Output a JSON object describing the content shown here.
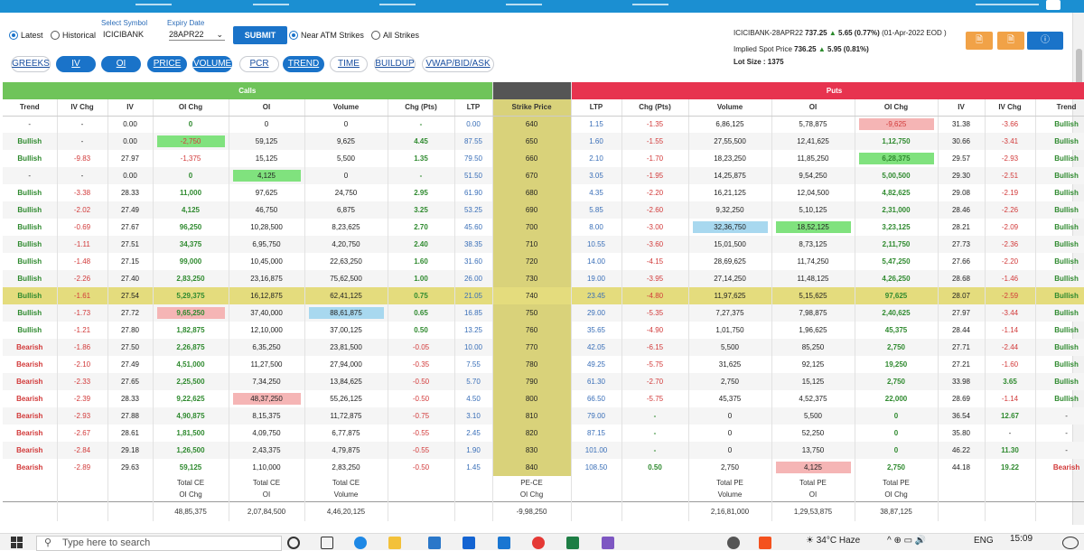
{
  "form": {
    "latest_label": "Latest",
    "historical_label": "Historical",
    "symbol_label": "Select Symbol",
    "symbol_value": "ICICIBANK",
    "expiry_label": "Expiry Date",
    "expiry_value": "28APR22",
    "submit_label": "SUBMIT",
    "near_atm_label": "Near ATM Strikes",
    "all_strikes_label": "All Strikes"
  },
  "tabs": [
    "GREEKS",
    "IV",
    "OI",
    "PRICE",
    "VOLUME",
    "PCR",
    "TREND",
    "TIME",
    "BUILDUP",
    "VWAP/BID/ASK"
  ],
  "info": {
    "contract": "ICICIBANK-28APR22",
    "price": "737.25",
    "change": "5.65 (0.77%)",
    "date": "(01-Apr-2022 EOD )",
    "spot_label": "Implied Spot Price",
    "spot": "736.25",
    "spot_change": "5.95 (0.81%)",
    "lot_label": "Lot Size :",
    "lot": "1375"
  },
  "sections": {
    "calls": "Calls",
    "puts": "Puts"
  },
  "headers": [
    "Trend",
    "IV Chg",
    "IV",
    "OI Chg",
    "OI",
    "Volume",
    "Chg (Pts)",
    "LTP",
    "Strike Price",
    "LTP",
    "Chg (Pts)",
    "Volume",
    "OI",
    "OI Chg",
    "IV",
    "IV Chg",
    "Trend"
  ],
  "rows": [
    [
      "-",
      "-",
      "0.00",
      "0",
      "0",
      "0",
      "-",
      "0.00",
      "640",
      "1.15",
      "-1.35",
      "6,86,125",
      "5,78,875",
      "-9,625",
      "31.38",
      "-3.66",
      "Bullish"
    ],
    [
      "Bullish",
      "-",
      "0.00",
      "-2,750",
      "59,125",
      "9,625",
      "4.45",
      "87.55",
      "650",
      "1.60",
      "-1.55",
      "27,55,500",
      "12,41,625",
      "1,12,750",
      "30.66",
      "-3.41",
      "Bullish"
    ],
    [
      "Bullish",
      "-9.83",
      "27.97",
      "-1,375",
      "15,125",
      "5,500",
      "1.35",
      "79.50",
      "660",
      "2.10",
      "-1.70",
      "18,23,250",
      "11,85,250",
      "6,28,375",
      "29.57",
      "-2.93",
      "Bullish"
    ],
    [
      "-",
      "-",
      "0.00",
      "0",
      "4,125",
      "0",
      "-",
      "51.50",
      "670",
      "3.05",
      "-1.95",
      "14,25,875",
      "9,54,250",
      "5,00,500",
      "29.30",
      "-2.51",
      "Bullish"
    ],
    [
      "Bullish",
      "-3.38",
      "28.33",
      "11,000",
      "97,625",
      "24,750",
      "2.95",
      "61.90",
      "680",
      "4.35",
      "-2.20",
      "16,21,125",
      "12,04,500",
      "4,82,625",
      "29.08",
      "-2.19",
      "Bullish"
    ],
    [
      "Bullish",
      "-2.02",
      "27.49",
      "4,125",
      "46,750",
      "6,875",
      "3.25",
      "53.25",
      "690",
      "5.85",
      "-2.60",
      "9,32,250",
      "5,10,125",
      "2,31,000",
      "28.46",
      "-2.26",
      "Bullish"
    ],
    [
      "Bullish",
      "-0.69",
      "27.67",
      "96,250",
      "10,28,500",
      "8,23,625",
      "2.70",
      "45.60",
      "700",
      "8.00",
      "-3.00",
      "32,36,750",
      "18,52,125",
      "3,23,125",
      "28.21",
      "-2.09",
      "Bullish"
    ],
    [
      "Bullish",
      "-1.11",
      "27.51",
      "34,375",
      "6,95,750",
      "4,20,750",
      "2.40",
      "38.35",
      "710",
      "10.55",
      "-3.60",
      "15,01,500",
      "8,73,125",
      "2,11,750",
      "27.73",
      "-2.36",
      "Bullish"
    ],
    [
      "Bullish",
      "-1.48",
      "27.15",
      "99,000",
      "10,45,000",
      "22,63,250",
      "1.60",
      "31.60",
      "720",
      "14.00",
      "-4.15",
      "28,69,625",
      "11,74,250",
      "5,47,250",
      "27.66",
      "-2.20",
      "Bullish"
    ],
    [
      "Bullish",
      "-2.26",
      "27.40",
      "2,83,250",
      "23,16,875",
      "75,62,500",
      "1.00",
      "26.00",
      "730",
      "19.00",
      "-3.95",
      "27,14,250",
      "11,48,125",
      "4,26,250",
      "28.68",
      "-1.46",
      "Bullish"
    ],
    [
      "Bullish",
      "-1.61",
      "27.54",
      "5,29,375",
      "16,12,875",
      "62,41,125",
      "0.75",
      "21.05",
      "740",
      "23.45",
      "-4.80",
      "11,97,625",
      "5,15,625",
      "97,625",
      "28.07",
      "-2.59",
      "Bullish"
    ],
    [
      "Bullish",
      "-1.73",
      "27.72",
      "9,65,250",
      "37,40,000",
      "88,61,875",
      "0.65",
      "16.85",
      "750",
      "29.00",
      "-5.35",
      "7,27,375",
      "7,98,875",
      "2,40,625",
      "27.97",
      "-3.44",
      "Bullish"
    ],
    [
      "Bullish",
      "-1.21",
      "27.80",
      "1,82,875",
      "12,10,000",
      "37,00,125",
      "0.50",
      "13.25",
      "760",
      "35.65",
      "-4.90",
      "1,01,750",
      "1,96,625",
      "45,375",
      "28.44",
      "-1.14",
      "Bullish"
    ],
    [
      "Bearish",
      "-1.86",
      "27.50",
      "2,26,875",
      "6,35,250",
      "23,81,500",
      "-0.05",
      "10.00",
      "770",
      "42.05",
      "-6.15",
      "5,500",
      "85,250",
      "2,750",
      "27.71",
      "-2.44",
      "Bullish"
    ],
    [
      "Bearish",
      "-2.10",
      "27.49",
      "4,51,000",
      "11,27,500",
      "27,94,000",
      "-0.35",
      "7.55",
      "780",
      "49.25",
      "-5.75",
      "31,625",
      "92,125",
      "19,250",
      "27.21",
      "-1.60",
      "Bullish"
    ],
    [
      "Bearish",
      "-2.33",
      "27.65",
      "2,25,500",
      "7,34,250",
      "13,84,625",
      "-0.50",
      "5.70",
      "790",
      "61.30",
      "-2.70",
      "2,750",
      "15,125",
      "2,750",
      "33.98",
      "3.65",
      "Bullish"
    ],
    [
      "Bearish",
      "-2.39",
      "28.33",
      "9,22,625",
      "48,37,250",
      "55,26,125",
      "-0.50",
      "4.50",
      "800",
      "66.50",
      "-5.75",
      "45,375",
      "4,52,375",
      "22,000",
      "28.69",
      "-1.14",
      "Bullish"
    ],
    [
      "Bearish",
      "-2.93",
      "27.88",
      "4,90,875",
      "8,15,375",
      "11,72,875",
      "-0.75",
      "3.10",
      "810",
      "79.00",
      "-",
      "0",
      "5,500",
      "0",
      "36.54",
      "12.67",
      "-"
    ],
    [
      "Bearish",
      "-2.67",
      "28.61",
      "1,81,500",
      "4,09,750",
      "6,77,875",
      "-0.55",
      "2.45",
      "820",
      "87.15",
      "-",
      "0",
      "52,250",
      "0",
      "35.80",
      "-",
      "-"
    ],
    [
      "Bearish",
      "-2.84",
      "29.18",
      "1,26,500",
      "2,43,375",
      "4,79,875",
      "-0.55",
      "1.90",
      "830",
      "101.00",
      "-",
      "0",
      "13,750",
      "0",
      "46.22",
      "11.30",
      "-"
    ],
    [
      "Bearish",
      "-2.89",
      "29.63",
      "59,125",
      "1,10,000",
      "2,83,250",
      "-0.50",
      "1.45",
      "840",
      "108.50",
      "0.50",
      "2,750",
      "4,125",
      "2,750",
      "44.18",
      "19.22",
      "Bearish"
    ]
  ],
  "totals": {
    "l1": [
      "",
      "",
      "",
      "Total CE",
      "Total CE",
      "Total CE",
      "",
      "",
      "PE-CE",
      "",
      "",
      "Total PE",
      "Total PE",
      "Total PE",
      "",
      "",
      ""
    ],
    "l2": [
      "",
      "",
      "",
      "OI Chg",
      "OI",
      "Volume",
      "",
      "",
      "OI Chg",
      "",
      "",
      "Volume",
      "OI",
      "OI Chg",
      "",
      "",
      ""
    ],
    "v": [
      "",
      "",
      "",
      "48,85,375",
      "2,07,84,500",
      "4,46,20,125",
      "",
      "",
      "-9,98,250",
      "",
      "",
      "2,16,81,000",
      "1,29,53,875",
      "38,87,125",
      "",
      "",
      ""
    ]
  },
  "taskbar": {
    "search_placeholder": "Type here to search",
    "weather": "34°C  Haze",
    "lang": "ENG",
    "time": "15:09"
  },
  "colors": {
    "calls_header": "#6fc45a",
    "puts_header": "#e7334f",
    "strike_col": "#d9d27a",
    "topbar": "#1b8fd2",
    "accent": "#1a73c9"
  }
}
